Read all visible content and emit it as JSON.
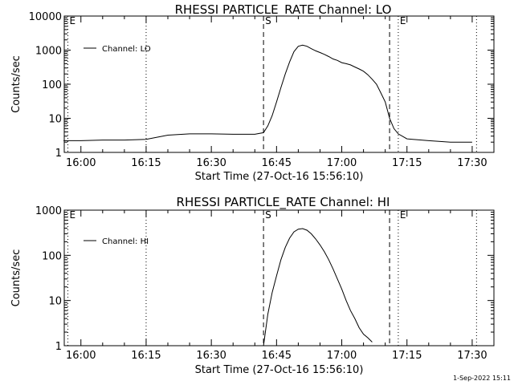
{
  "chart_data": [
    {
      "type": "line",
      "title": "RHESSI PARTICLE_RATE Channel: LO",
      "xlabel": "Start Time (27-Oct-16 15:56:10)",
      "ylabel": "Counts/sec",
      "yscale": "log",
      "ylim": [
        1,
        10000
      ],
      "xlim": [
        "15:56:10",
        "17:35:00"
      ],
      "x_ticks": [
        "16:00",
        "16:15",
        "16:30",
        "16:45",
        "17:00",
        "17:15",
        "17:30"
      ],
      "y_ticks": [
        "1",
        "10",
        "100",
        "1000",
        "10000"
      ],
      "legend": {
        "position": "top-left",
        "entries": [
          "Channel: LO"
        ]
      },
      "markers": [
        {
          "label": "E",
          "time": "15:57",
          "style": "dotted"
        },
        {
          "label": "",
          "time": "16:15",
          "style": "dotted"
        },
        {
          "label": "S",
          "time": "16:42",
          "style": "dashed"
        },
        {
          "label": "",
          "time": "17:11",
          "style": "dashed"
        },
        {
          "label": "E",
          "time": "17:13",
          "style": "dotted"
        },
        {
          "label": "",
          "time": "17:31",
          "style": "dotted"
        }
      ],
      "series": [
        {
          "name": "Channel: LO",
          "x": [
            "15:56",
            "16:00",
            "16:05",
            "16:10",
            "16:15",
            "16:20",
            "16:25",
            "16:30",
            "16:35",
            "16:40",
            "16:42",
            "16:43",
            "16:44",
            "16:45",
            "16:46",
            "16:47",
            "16:48",
            "16:49",
            "16:50",
            "16:51",
            "16:52",
            "16:53",
            "16:54",
            "16:55",
            "16:56",
            "16:57",
            "16:58",
            "16:59",
            "17:00",
            "17:01",
            "17:02",
            "17:03",
            "17:04",
            "17:05",
            "17:06",
            "17:07",
            "17:08",
            "17:09",
            "17:10",
            "17:11",
            "17:12",
            "17:13",
            "17:15",
            "17:20",
            "17:25",
            "17:28",
            "17:30"
          ],
          "y": [
            2.2,
            2.2,
            2.3,
            2.3,
            2.4,
            3.2,
            3.5,
            3.5,
            3.4,
            3.4,
            3.8,
            6,
            12,
            30,
            80,
            200,
            450,
            900,
            1300,
            1400,
            1300,
            1100,
            950,
            850,
            750,
            650,
            550,
            500,
            430,
            400,
            370,
            320,
            280,
            240,
            190,
            140,
            100,
            55,
            30,
            10,
            5,
            3.5,
            2.5,
            2.2,
            2.0,
            2.0,
            2.0
          ]
        }
      ]
    },
    {
      "type": "line",
      "title": "RHESSI PARTICLE_RATE Channel: HI",
      "xlabel": "Start Time (27-Oct-16 15:56:10)",
      "ylabel": "Counts/sec",
      "yscale": "log",
      "ylim": [
        1,
        1000
      ],
      "xlim": [
        "15:56:10",
        "17:35:00"
      ],
      "x_ticks": [
        "16:00",
        "16:15",
        "16:30",
        "16:45",
        "17:00",
        "17:15",
        "17:30"
      ],
      "y_ticks": [
        "1",
        "10",
        "100",
        "1000"
      ],
      "legend": {
        "position": "top-left",
        "entries": [
          "Channel: HI"
        ]
      },
      "markers": [
        {
          "label": "E",
          "time": "15:57",
          "style": "dotted"
        },
        {
          "label": "",
          "time": "16:15",
          "style": "dotted"
        },
        {
          "label": "S",
          "time": "16:42",
          "style": "dashed"
        },
        {
          "label": "",
          "time": "17:11",
          "style": "dashed"
        },
        {
          "label": "E",
          "time": "17:13",
          "style": "dotted"
        },
        {
          "label": "",
          "time": "17:31",
          "style": "dotted"
        }
      ],
      "series": [
        {
          "name": "Channel: HI",
          "x": [
            "16:42",
            "16:43",
            "16:44",
            "16:45",
            "16:46",
            "16:47",
            "16:48",
            "16:49",
            "16:50",
            "16:51",
            "16:52",
            "16:53",
            "16:54",
            "16:55",
            "16:56",
            "16:57",
            "16:58",
            "16:59",
            "17:00",
            "17:01",
            "17:02",
            "17:03",
            "17:04",
            "17:05",
            "17:06",
            "17:07"
          ],
          "y": [
            1,
            5,
            15,
            35,
            80,
            150,
            240,
            330,
            380,
            390,
            360,
            300,
            230,
            170,
            120,
            80,
            50,
            30,
            18,
            10,
            6,
            4,
            2.5,
            1.8,
            1.5,
            1.2
          ]
        }
      ]
    }
  ],
  "timestamp": "1-Sep-2022 15:11"
}
